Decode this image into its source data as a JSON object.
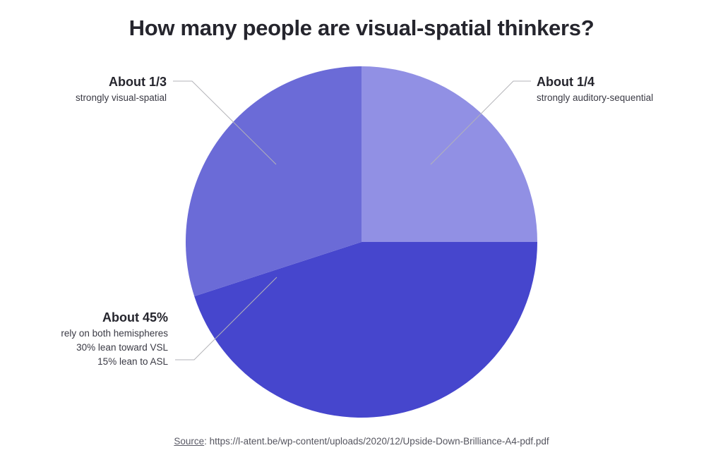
{
  "title": "How many people are visual-spatial thinkers?",
  "chart_data": {
    "type": "pie",
    "start_angle_deg": 0,
    "direction": "clockwise",
    "slices": [
      {
        "label": "About 1/4",
        "value": 25,
        "color": "#9190e4",
        "description": [
          "strongly auditory-sequential"
        ]
      },
      {
        "label": "About 45%",
        "value": 45,
        "color": "#4646cd",
        "description": [
          "rely on both hemispheres",
          "30% lean toward VSL",
          "15% lean to ASL"
        ]
      },
      {
        "label": "About 1/3",
        "value": 30,
        "color": "#6b6bd7",
        "description": [
          "strongly visual-spatial"
        ]
      }
    ]
  },
  "source": {
    "label": "Source",
    "text": ": https://l-atent.be/wp-content/uploads/2020/12/Upside-Down-Brilliance-A4-pdf.pdf"
  }
}
